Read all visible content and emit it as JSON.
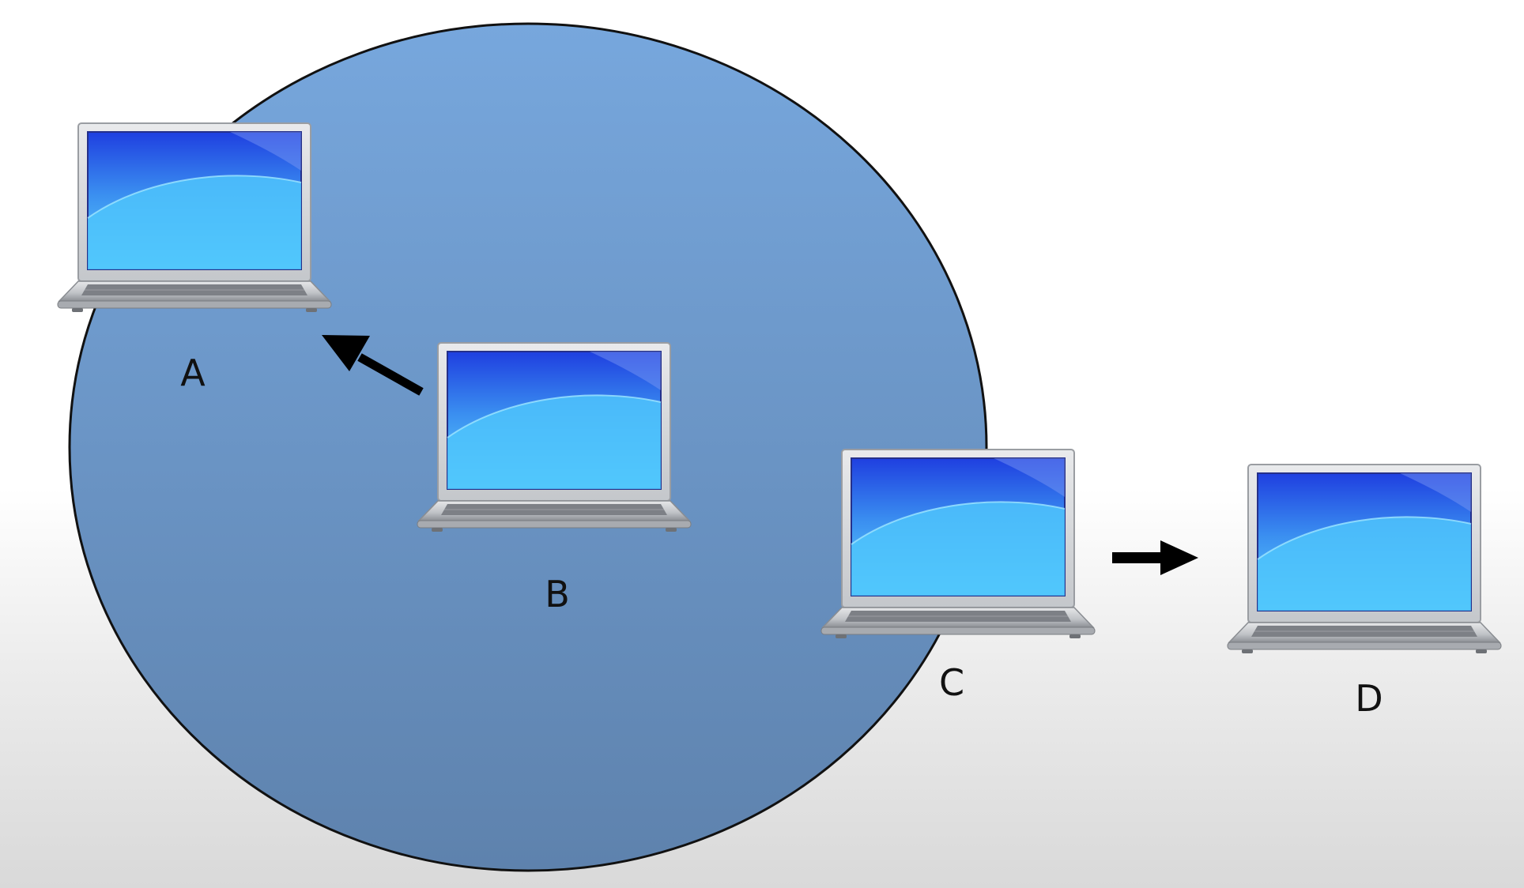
{
  "diagram": {
    "colors": {
      "range_fill_top": "#77a7dd",
      "range_fill_bottom": "#5e82ad",
      "range_stroke": "#111111",
      "arrow": "#000000",
      "screen_dark": "#1f3fe0",
      "screen_light": "#5fd8ff",
      "laptop_frame": "#d4d6d9"
    },
    "nodes": [
      {
        "id": "A",
        "label": "A",
        "icon": "laptop-icon"
      },
      {
        "id": "B",
        "label": "B",
        "icon": "laptop-icon"
      },
      {
        "id": "C",
        "label": "C",
        "icon": "laptop-icon"
      },
      {
        "id": "D",
        "label": "D",
        "icon": "laptop-icon"
      }
    ],
    "arrows": [
      {
        "from": "B",
        "to": "A"
      },
      {
        "from": "C",
        "to": "D"
      }
    ],
    "range_area": {
      "centered_on": "B"
    }
  }
}
